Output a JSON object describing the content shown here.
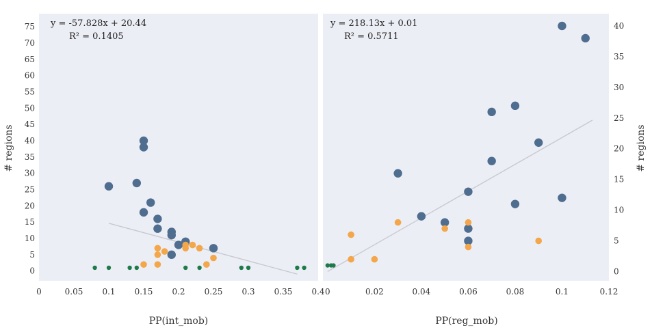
{
  "chart_data": [
    {
      "type": "scatter",
      "xlabel": "PP(int_mob)",
      "ylabel": "# regions",
      "xlim": [
        0,
        0.4
      ],
      "ylim": [
        -3,
        79
      ],
      "xticks": [
        0,
        0.05,
        0.1,
        0.15,
        0.2,
        0.25,
        0.3,
        0.35,
        0.4
      ],
      "xtick_labels": [
        "0",
        "0.05",
        "0.1",
        "0.15",
        "0.2",
        "0.25",
        "0.3",
        "0.35",
        "0.4"
      ],
      "yticks": [
        0,
        5,
        10,
        15,
        20,
        25,
        30,
        35,
        40,
        45,
        50,
        55,
        60,
        65,
        70,
        75
      ],
      "ytick_labels": [
        "0",
        "5",
        "10",
        "15",
        "20",
        "25",
        "30",
        "35",
        "40",
        "45",
        "50",
        "55",
        "60",
        "65",
        "70",
        "75"
      ],
      "trendline": {
        "equation": "y = -57.828x + 20.44",
        "r2": "R² = 0.1405",
        "slope": -57.828,
        "intercept": 20.44,
        "x_range": [
          0.1,
          0.37
        ],
        "color": "#c8c8d0"
      },
      "series": [
        {
          "color": "#4f6d8f",
          "points": [
            {
              "x": 0.1,
              "y": 26
            },
            {
              "x": 0.14,
              "y": 27
            },
            {
              "x": 0.15,
              "y": 40
            },
            {
              "x": 0.15,
              "y": 38
            },
            {
              "x": 0.15,
              "y": 18
            },
            {
              "x": 0.16,
              "y": 21
            },
            {
              "x": 0.17,
              "y": 16
            },
            {
              "x": 0.17,
              "y": 13
            },
            {
              "x": 0.19,
              "y": 12
            },
            {
              "x": 0.19,
              "y": 11
            },
            {
              "x": 0.2,
              "y": 8
            },
            {
              "x": 0.21,
              "y": 9
            },
            {
              "x": 0.19,
              "y": 5
            },
            {
              "x": 0.25,
              "y": 7
            }
          ]
        },
        {
          "color": "#f3a64a",
          "points": [
            {
              "x": 0.15,
              "y": 2
            },
            {
              "x": 0.17,
              "y": 7
            },
            {
              "x": 0.17,
              "y": 5
            },
            {
              "x": 0.17,
              "y": 2
            },
            {
              "x": 0.18,
              "y": 6
            },
            {
              "x": 0.21,
              "y": 8
            },
            {
              "x": 0.21,
              "y": 7
            },
            {
              "x": 0.22,
              "y": 8
            },
            {
              "x": 0.23,
              "y": 7
            },
            {
              "x": 0.24,
              "y": 2
            },
            {
              "x": 0.25,
              "y": 4
            }
          ]
        },
        {
          "color": "#1f7a4a",
          "points": [
            {
              "x": 0.08,
              "y": 1
            },
            {
              "x": 0.1,
              "y": 1
            },
            {
              "x": 0.13,
              "y": 1
            },
            {
              "x": 0.14,
              "y": 1
            },
            {
              "x": 0.21,
              "y": 1
            },
            {
              "x": 0.23,
              "y": 1
            },
            {
              "x": 0.29,
              "y": 1
            },
            {
              "x": 0.3,
              "y": 1
            },
            {
              "x": 0.37,
              "y": 1
            },
            {
              "x": 0.38,
              "y": 1
            }
          ]
        }
      ]
    },
    {
      "type": "scatter",
      "xlabel": "PP(reg_mob)",
      "ylabel": "# regions",
      "xlim": [
        -0.002,
        0.12
      ],
      "ylim": [
        -1.5,
        42
      ],
      "xticks": [
        0,
        0.02,
        0.04,
        0.06,
        0.08,
        0.1,
        0.12
      ],
      "xtick_labels": [
        "0",
        "0.02",
        "0.04",
        "0.06",
        "0.08",
        "0.1",
        "0.12"
      ],
      "yticks": [
        0,
        5,
        10,
        15,
        20,
        25,
        30,
        35,
        40
      ],
      "ytick_labels": [
        "0",
        "5",
        "10",
        "15",
        "20",
        "25",
        "30",
        "35",
        "40"
      ],
      "trendline": {
        "equation": "y = 218.13x + 0.01",
        "r2": "R² = 0.5711",
        "slope": 218.13,
        "intercept": 0.01,
        "x_range": [
          0,
          0.113
        ],
        "color": "#c8c8d0"
      },
      "series": [
        {
          "color": "#4f6d8f",
          "points": [
            {
              "x": 0.03,
              "y": 16
            },
            {
              "x": 0.04,
              "y": 9
            },
            {
              "x": 0.05,
              "y": 8
            },
            {
              "x": 0.06,
              "y": 13
            },
            {
              "x": 0.06,
              "y": 7
            },
            {
              "x": 0.06,
              "y": 5
            },
            {
              "x": 0.07,
              "y": 26
            },
            {
              "x": 0.07,
              "y": 18
            },
            {
              "x": 0.08,
              "y": 27
            },
            {
              "x": 0.08,
              "y": 11
            },
            {
              "x": 0.09,
              "y": 21
            },
            {
              "x": 0.1,
              "y": 40
            },
            {
              "x": 0.1,
              "y": 12
            },
            {
              "x": 0.11,
              "y": 38
            }
          ]
        },
        {
          "color": "#f3a64a",
          "points": [
            {
              "x": 0.01,
              "y": 6
            },
            {
              "x": 0.01,
              "y": 2
            },
            {
              "x": 0.02,
              "y": 2
            },
            {
              "x": 0.03,
              "y": 8
            },
            {
              "x": 0.05,
              "y": 7
            },
            {
              "x": 0.06,
              "y": 8
            },
            {
              "x": 0.06,
              "y": 4
            },
            {
              "x": 0.09,
              "y": 5
            }
          ]
        },
        {
          "color": "#1f7a4a",
          "points": [
            {
              "x": 0.0,
              "y": 1
            },
            {
              "x": 0.0015,
              "y": 1
            },
            {
              "x": 0.0025,
              "y": 1
            }
          ]
        }
      ]
    }
  ]
}
